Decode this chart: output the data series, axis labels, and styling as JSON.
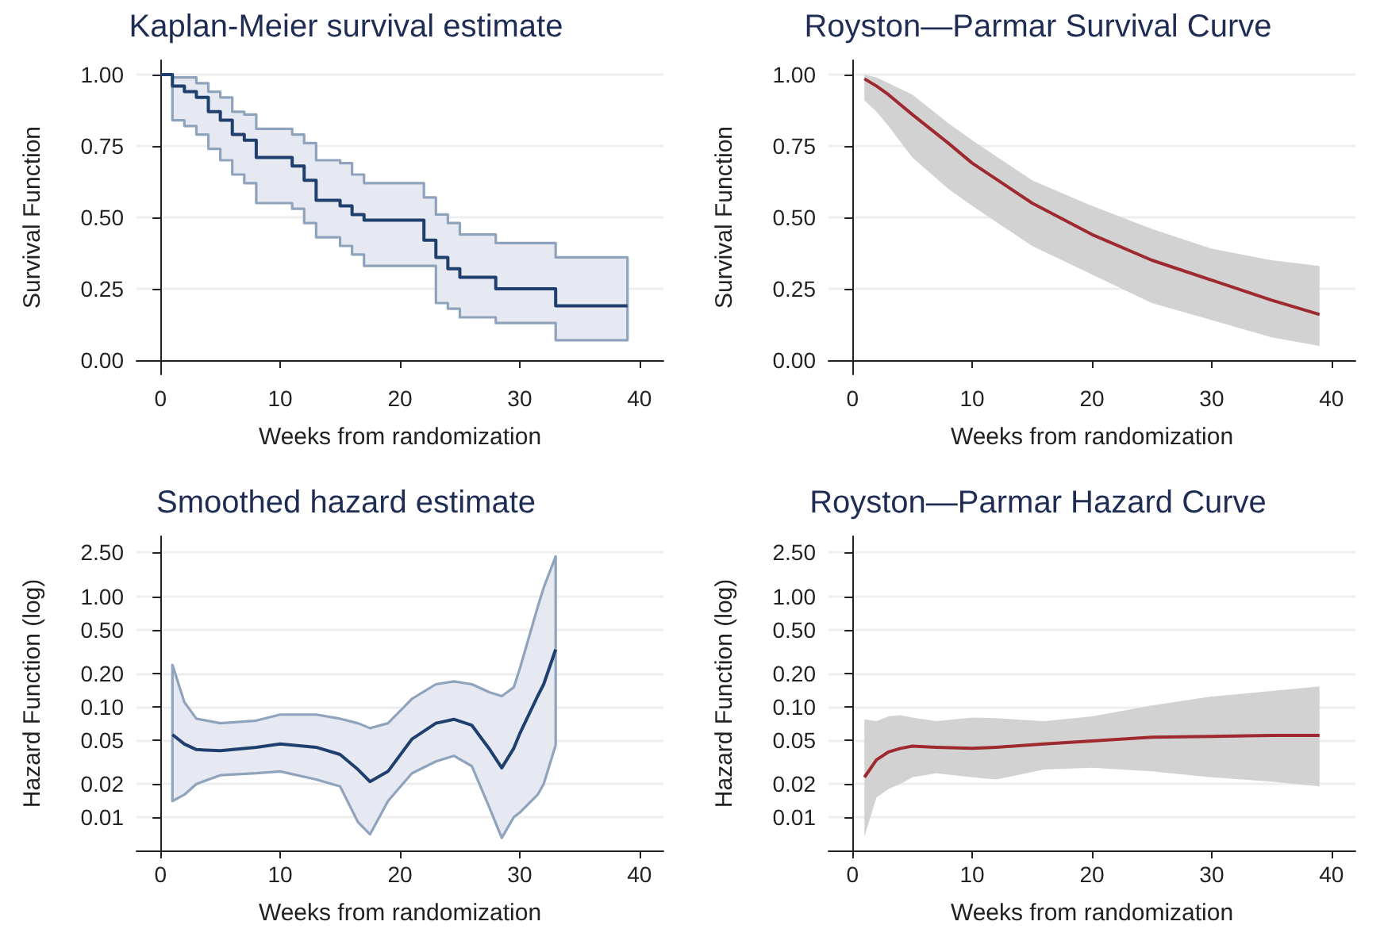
{
  "chart_data": [
    {
      "type": "step",
      "title": "Kaplan-Meier survival estimate",
      "xlabel": "Weeks from randomization",
      "ylabel": "Survival Function",
      "x": [
        0,
        1,
        2,
        3,
        4,
        5,
        6,
        7,
        8,
        11,
        12,
        13,
        15,
        16,
        17,
        22,
        23,
        24,
        25,
        28,
        33,
        39
      ],
      "xlim": [
        -2,
        42
      ],
      "xticks": [
        0,
        10,
        20,
        30,
        40
      ],
      "ylim": [
        -0.05,
        1.05
      ],
      "yticks": [
        {
          "value": 0,
          "label": "0.00"
        },
        {
          "value": 0.25,
          "label": "0.25"
        },
        {
          "value": 0.5,
          "label": "0.50"
        },
        {
          "value": 0.75,
          "label": "0.75"
        },
        {
          "value": 1,
          "label": "1.00"
        }
      ],
      "grid": "y",
      "series": [
        {
          "color": "#1f3f6e",
          "values": [
            1,
            0.96,
            0.94,
            0.92,
            0.87,
            0.84,
            0.79,
            0.77,
            0.71,
            0.68,
            0.63,
            0.56,
            0.54,
            0.51,
            0.49,
            0.42,
            0.36,
            0.32,
            0.29,
            0.25,
            0.19,
            0.19
          ],
          "upper": [
            null,
            0.99,
            0.99,
            0.97,
            0.94,
            0.92,
            0.87,
            0.86,
            0.81,
            0.79,
            0.76,
            0.7,
            0.69,
            0.65,
            0.62,
            0.57,
            0.51,
            0.48,
            0.44,
            0.41,
            0.36,
            0.36
          ],
          "lower": [
            null,
            0.84,
            0.82,
            0.79,
            0.74,
            0.7,
            0.65,
            0.62,
            0.55,
            0.53,
            0.48,
            0.43,
            0.4,
            0.37,
            0.33,
            0.33,
            0.2,
            0.18,
            0.15,
            0.13,
            0.07,
            0.07
          ]
        }
      ]
    },
    {
      "type": "line",
      "title": "Royston—Parmar Survival Curve",
      "xlabel": "Weeks from randomization",
      "ylabel": "Survival Function",
      "x": [
        1,
        2,
        3,
        5,
        8,
        10,
        15,
        20,
        25,
        30,
        35,
        39
      ],
      "xlim": [
        -2,
        42
      ],
      "xticks": [
        0,
        10,
        20,
        30,
        40
      ],
      "ylim": [
        -0.05,
        1.05
      ],
      "yticks": [
        {
          "value": 0,
          "label": "0.00"
        },
        {
          "value": 0.25,
          "label": "0.25"
        },
        {
          "value": 0.5,
          "label": "0.50"
        },
        {
          "value": 0.75,
          "label": "0.75"
        },
        {
          "value": 1,
          "label": "1.00"
        }
      ],
      "grid": "y",
      "series": [
        {
          "color": "#9e2a30",
          "values": [
            0.985,
            0.96,
            0.93,
            0.86,
            0.76,
            0.69,
            0.55,
            0.44,
            0.35,
            0.28,
            0.21,
            0.16
          ],
          "upper": [
            1,
            0.99,
            0.97,
            0.93,
            0.83,
            0.77,
            0.63,
            0.54,
            0.46,
            0.39,
            0.35,
            0.33
          ],
          "lower": [
            0.91,
            0.87,
            0.82,
            0.71,
            0.6,
            0.54,
            0.4,
            0.3,
            0.2,
            0.14,
            0.08,
            0.05
          ]
        }
      ]
    },
    {
      "type": "line",
      "title": "Smoothed hazard estimate",
      "xlabel": "Weeks from randomization",
      "ylabel": "Hazard Function (log)",
      "log": "y",
      "x": [
        1,
        2,
        3,
        5,
        8,
        10,
        13,
        15,
        16.5,
        17.5,
        19,
        21,
        23,
        24.5,
        26,
        27.5,
        28.5,
        29.5,
        30,
        31.5,
        32,
        33
      ],
      "xlim": [
        -2,
        42
      ],
      "xticks": [
        0,
        10,
        20,
        30,
        40
      ],
      "ylim": [
        0.005,
        3.5
      ],
      "yticks": [
        {
          "value": 0.01,
          "label": "0.01"
        },
        {
          "value": 0.02,
          "label": "0.02"
        },
        {
          "value": 0.05,
          "label": "0.05"
        },
        {
          "value": 0.1,
          "label": "0.10"
        },
        {
          "value": 0.2,
          "label": "0.20"
        },
        {
          "value": 0.5,
          "label": "0.50"
        },
        {
          "value": 1,
          "label": "1.00"
        },
        {
          "value": 2.5,
          "label": "2.50"
        }
      ],
      "grid": "y",
      "series": [
        {
          "color": "#1f3f6e",
          "values": [
            0.056,
            0.046,
            0.041,
            0.04,
            0.043,
            0.046,
            0.043,
            0.037,
            0.027,
            0.021,
            0.026,
            0.051,
            0.071,
            0.077,
            0.068,
            0.041,
            0.028,
            0.042,
            0.057,
            0.125,
            0.16,
            0.33
          ],
          "upper": [
            0.24,
            0.11,
            0.078,
            0.071,
            0.075,
            0.085,
            0.085,
            0.078,
            0.071,
            0.064,
            0.071,
            0.118,
            0.16,
            0.17,
            0.16,
            0.135,
            0.125,
            0.15,
            0.22,
            0.8,
            1.2,
            2.3
          ],
          "lower": [
            0.014,
            0.016,
            0.02,
            0.024,
            0.025,
            0.026,
            0.022,
            0.019,
            0.009,
            0.007,
            0.014,
            0.025,
            0.032,
            0.036,
            0.029,
            0.012,
            0.0065,
            0.01,
            0.011,
            0.016,
            0.02,
            0.045
          ]
        }
      ]
    },
    {
      "type": "line",
      "title": "Royston—Parmar Hazard Curve",
      "xlabel": "Weeks from randomization",
      "ylabel": "Hazard Function (log)",
      "log": "y",
      "x": [
        1,
        2,
        3,
        4,
        5,
        7,
        10,
        12,
        16,
        20,
        25,
        30,
        35,
        39
      ],
      "xlim": [
        -2,
        42
      ],
      "xticks": [
        0,
        10,
        20,
        30,
        40
      ],
      "ylim": [
        0.005,
        3.5
      ],
      "yticks": [
        {
          "value": 0.01,
          "label": "0.01"
        },
        {
          "value": 0.02,
          "label": "0.02"
        },
        {
          "value": 0.05,
          "label": "0.05"
        },
        {
          "value": 0.1,
          "label": "0.10"
        },
        {
          "value": 0.2,
          "label": "0.20"
        },
        {
          "value": 0.5,
          "label": "0.50"
        },
        {
          "value": 1,
          "label": "1.00"
        },
        {
          "value": 2.5,
          "label": "2.50"
        }
      ],
      "grid": "y",
      "series": [
        {
          "color": "#9e2a30",
          "values": [
            0.023,
            0.033,
            0.039,
            0.042,
            0.044,
            0.043,
            0.042,
            0.043,
            0.046,
            0.049,
            0.053,
            0.054,
            0.055,
            0.055
          ],
          "upper": [
            0.077,
            0.074,
            0.082,
            0.084,
            0.08,
            0.074,
            0.08,
            0.079,
            0.074,
            0.082,
            0.103,
            0.124,
            0.139,
            0.153
          ],
          "lower": [
            0.0067,
            0.015,
            0.018,
            0.02,
            0.023,
            0.025,
            0.023,
            0.022,
            0.027,
            0.028,
            0.026,
            0.023,
            0.021,
            0.019
          ]
        }
      ]
    }
  ]
}
